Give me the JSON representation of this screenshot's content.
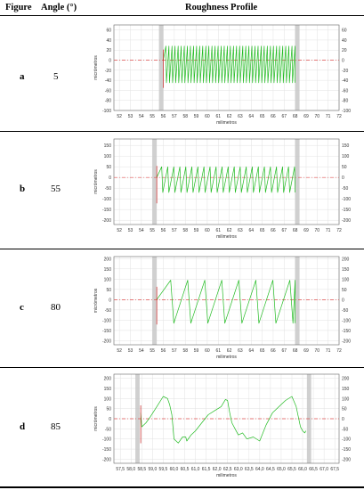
{
  "table": {
    "headers": {
      "figure": "Figure",
      "angle": "Angle (°)",
      "profile": "Roughness Profile"
    }
  },
  "rows": [
    {
      "figure": "a",
      "angle": "5"
    },
    {
      "figure": "b",
      "angle": "55"
    },
    {
      "figure": "c",
      "angle": "80"
    },
    {
      "figure": "d",
      "angle": "85"
    }
  ],
  "chart_data": [
    {
      "type": "line",
      "panel": "a",
      "xlabel": "milimetros",
      "ylabel": "micrómetros",
      "xlim": [
        51.5,
        72
      ],
      "ylim": [
        -100,
        70
      ],
      "x_ticks": [
        "52",
        "53",
        "54",
        "55",
        "56",
        "57",
        "58",
        "59",
        "60",
        "61",
        "62",
        "63",
        "64",
        "65",
        "66",
        "67",
        "68",
        "69",
        "70",
        "71",
        "72"
      ],
      "x_tick_values": [
        52,
        53,
        54,
        55,
        56,
        57,
        58,
        59,
        60,
        61,
        62,
        63,
        64,
        65,
        66,
        67,
        68,
        69,
        70,
        71,
        72
      ],
      "y_ticks": [
        "60",
        "40",
        "20",
        "0",
        "-20",
        "-40",
        "-60",
        "-80",
        "-100"
      ],
      "y_tick_values": [
        60,
        40,
        20,
        0,
        -20,
        -40,
        -60,
        -80,
        -100
      ],
      "shaded_regions": [
        [
          55.6,
          56.0
        ],
        [
          68.0,
          68.4
        ]
      ],
      "reference_line": 0,
      "series": [
        {
          "profile": "sawtooth",
          "x_start": 56.0,
          "x_end": 68.0,
          "period": 0.28,
          "peak": 28,
          "valley": -45,
          "color": "#22bb22"
        }
      ]
    },
    {
      "type": "line",
      "panel": "b",
      "xlabel": "milimetros",
      "ylabel": "micrómetros",
      "xlim": [
        51.5,
        72
      ],
      "ylim": [
        -220,
        180
      ],
      "x_ticks": [
        "52",
        "53",
        "54",
        "55",
        "56",
        "57",
        "58",
        "59",
        "60",
        "61",
        "62",
        "63",
        "64",
        "65",
        "66",
        "67",
        "68",
        "69",
        "70",
        "71",
        "72"
      ],
      "x_tick_values": [
        52,
        53,
        54,
        55,
        56,
        57,
        58,
        59,
        60,
        61,
        62,
        63,
        64,
        65,
        66,
        67,
        68,
        69,
        70,
        71,
        72
      ],
      "y_ticks": [
        "150",
        "100",
        "50",
        "0",
        "-50",
        "-100",
        "-150",
        "-200"
      ],
      "y_tick_values": [
        150,
        100,
        50,
        0,
        -50,
        -100,
        -150,
        -200
      ],
      "shaded_regions": [
        [
          55.0,
          55.4
        ],
        [
          68.0,
          68.4
        ]
      ],
      "reference_line": 0,
      "series": [
        {
          "profile": "sawtooth",
          "x_start": 55.4,
          "x_end": 68.0,
          "period": 0.55,
          "peak": 50,
          "valley": -70,
          "color": "#22bb22"
        }
      ]
    },
    {
      "type": "line",
      "panel": "c",
      "xlabel": "milimetros",
      "ylabel": "micrómetros",
      "xlim": [
        51.5,
        72
      ],
      "ylim": [
        -220,
        210
      ],
      "x_ticks": [
        "52",
        "53",
        "54",
        "55",
        "56",
        "57",
        "58",
        "59",
        "60",
        "61",
        "62",
        "63",
        "64",
        "65",
        "66",
        "67",
        "68",
        "69",
        "70",
        "71",
        "72"
      ],
      "x_tick_values": [
        52,
        53,
        54,
        55,
        56,
        57,
        58,
        59,
        60,
        61,
        62,
        63,
        64,
        65,
        66,
        67,
        68,
        69,
        70,
        71,
        72
      ],
      "y_ticks": [
        "200",
        "150",
        "100",
        "50",
        "0",
        "-50",
        "-100",
        "-150",
        "-200"
      ],
      "y_tick_values": [
        200,
        150,
        100,
        50,
        0,
        -50,
        -100,
        -150,
        -200
      ],
      "shaded_regions": [
        [
          55.0,
          55.4
        ],
        [
          68.0,
          68.4
        ]
      ],
      "reference_line": 0,
      "series": [
        {
          "profile": "sawtooth",
          "x_start": 55.4,
          "x_end": 68.0,
          "period": 1.55,
          "peak": 95,
          "valley": -115,
          "color": "#22bb22"
        }
      ]
    },
    {
      "type": "line",
      "panel": "d",
      "xlabel": "milimetros",
      "ylabel": "micrómetros",
      "xlim": [
        57.2,
        67.7
      ],
      "ylim": [
        -220,
        220
      ],
      "x_ticks": [
        "57,5",
        "58,0",
        "58,5",
        "59,0",
        "59,5",
        "60,0",
        "60,5",
        "61,0",
        "61,5",
        "62,0",
        "62,5",
        "63,0",
        "63,5",
        "64,0",
        "64,5",
        "65,0",
        "65,5",
        "66,0",
        "66,5",
        "67,0",
        "67,5"
      ],
      "x_tick_values": [
        57.5,
        58.0,
        58.5,
        59.0,
        59.5,
        60.0,
        60.5,
        61.0,
        61.5,
        62.0,
        62.5,
        63.0,
        63.5,
        64.0,
        64.5,
        65.0,
        65.5,
        66.0,
        66.5,
        67.0,
        67.5
      ],
      "y_ticks": [
        "200",
        "150",
        "100",
        "50",
        "0",
        "-50",
        "-100",
        "-150",
        "-200"
      ],
      "y_tick_values": [
        200,
        150,
        100,
        50,
        0,
        -50,
        -100,
        -150,
        -200
      ],
      "shaded_regions": [
        [
          58.2,
          58.4
        ],
        [
          66.2,
          66.4
        ]
      ],
      "reference_line": 0,
      "series": [
        {
          "profile": "points",
          "color": "#22bb22",
          "x": [
            58.45,
            58.5,
            58.7,
            58.9,
            59.2,
            59.5,
            59.7,
            59.8,
            59.9,
            60.0,
            60.2,
            60.4,
            60.55,
            60.6,
            60.8,
            61.0,
            61.3,
            61.6,
            61.9,
            62.2,
            62.4,
            62.5,
            62.6,
            62.7,
            62.9,
            63.0,
            63.2,
            63.4,
            63.7,
            64.0,
            64.3,
            64.6,
            64.9,
            65.2,
            65.5,
            65.7,
            65.9,
            66.0,
            66.1,
            66.15
          ],
          "y": [
            30,
            -40,
            -20,
            10,
            60,
            110,
            100,
            70,
            20,
            -100,
            -120,
            -90,
            -90,
            -110,
            -80,
            -60,
            -20,
            20,
            40,
            60,
            95,
            90,
            30,
            -20,
            -60,
            -80,
            -70,
            -100,
            -90,
            -110,
            -30,
            30,
            60,
            90,
            110,
            60,
            -40,
            -60,
            -70,
            -60
          ]
        }
      ]
    }
  ]
}
